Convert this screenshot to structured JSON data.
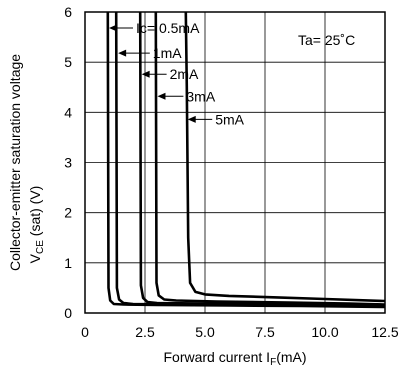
{
  "chart_data": {
    "type": "line",
    "xlabel": "Forward current I",
    "xlabel_sub": "F",
    "xlabel_unit": "(mA)",
    "ylabel_line1": "Collector-emitter saturation voltage",
    "ylabel_line2_prefix": "V",
    "ylabel_line2_sub": "CE",
    "ylabel_line2_suffix": " (sat) (V)",
    "xlim": [
      0,
      12.5
    ],
    "ylim": [
      0,
      6
    ],
    "x_ticks": [
      0,
      2.5,
      5,
      7.5,
      10,
      12.5
    ],
    "x_tick_labels": [
      "0",
      "2.5",
      "5.0",
      "7.5",
      "10.0",
      "12.5"
    ],
    "y_ticks": [
      0,
      1,
      2,
      3,
      4,
      5,
      6
    ],
    "y_tick_labels": [
      "0",
      "1",
      "2",
      "3",
      "4",
      "5",
      "6"
    ],
    "grid": true,
    "condition_label": "Ta= 25˚C",
    "series": [
      {
        "name": "Ic= 0.5mA",
        "x": [
          0.95,
          0.98,
          1.05,
          1.2,
          1.6,
          3.0,
          6.0,
          9.0,
          12.5
        ],
        "y": [
          6.0,
          0.5,
          0.25,
          0.18,
          0.17,
          0.16,
          0.15,
          0.14,
          0.12
        ]
      },
      {
        "name": "1mA",
        "x": [
          1.3,
          1.33,
          1.42,
          1.6,
          2.0,
          4.0,
          7.0,
          10.0,
          12.5
        ],
        "y": [
          6.0,
          0.5,
          0.27,
          0.2,
          0.18,
          0.17,
          0.16,
          0.15,
          0.13
        ]
      },
      {
        "name": "2mA",
        "x": [
          2.3,
          2.33,
          2.42,
          2.6,
          3.0,
          5.0,
          8.0,
          11.0,
          12.5
        ],
        "y": [
          6.0,
          0.55,
          0.3,
          0.22,
          0.2,
          0.19,
          0.18,
          0.16,
          0.15
        ]
      },
      {
        "name": "3mA",
        "x": [
          2.95,
          2.98,
          3.07,
          3.3,
          3.8,
          5.5,
          8.5,
          11.0,
          12.5
        ],
        "y": [
          6.0,
          0.6,
          0.35,
          0.27,
          0.25,
          0.23,
          0.21,
          0.19,
          0.17
        ]
      },
      {
        "name": "5mA",
        "x": [
          4.2,
          4.24,
          4.3,
          4.38,
          4.6,
          5.0,
          6.0,
          8.0,
          10.0,
          12.5
        ],
        "y": [
          6.0,
          4.5,
          1.5,
          0.6,
          0.42,
          0.37,
          0.34,
          0.31,
          0.28,
          0.24
        ]
      }
    ],
    "annotations": [
      {
        "text": "Ic= 0.5mA",
        "arrow_from_x": 2.0,
        "arrow_to_x": 1.0,
        "y": 5.68
      },
      {
        "text": "1mA",
        "arrow_from_x": 2.7,
        "arrow_to_x": 1.38,
        "y": 5.18
      },
      {
        "text": "2mA",
        "arrow_from_x": 3.4,
        "arrow_to_x": 2.36,
        "y": 4.76
      },
      {
        "text": "3mA",
        "arrow_from_x": 4.1,
        "arrow_to_x": 3.02,
        "y": 4.32
      },
      {
        "text": "5mA",
        "arrow_from_x": 5.3,
        "arrow_to_x": 4.28,
        "y": 3.86
      }
    ]
  }
}
